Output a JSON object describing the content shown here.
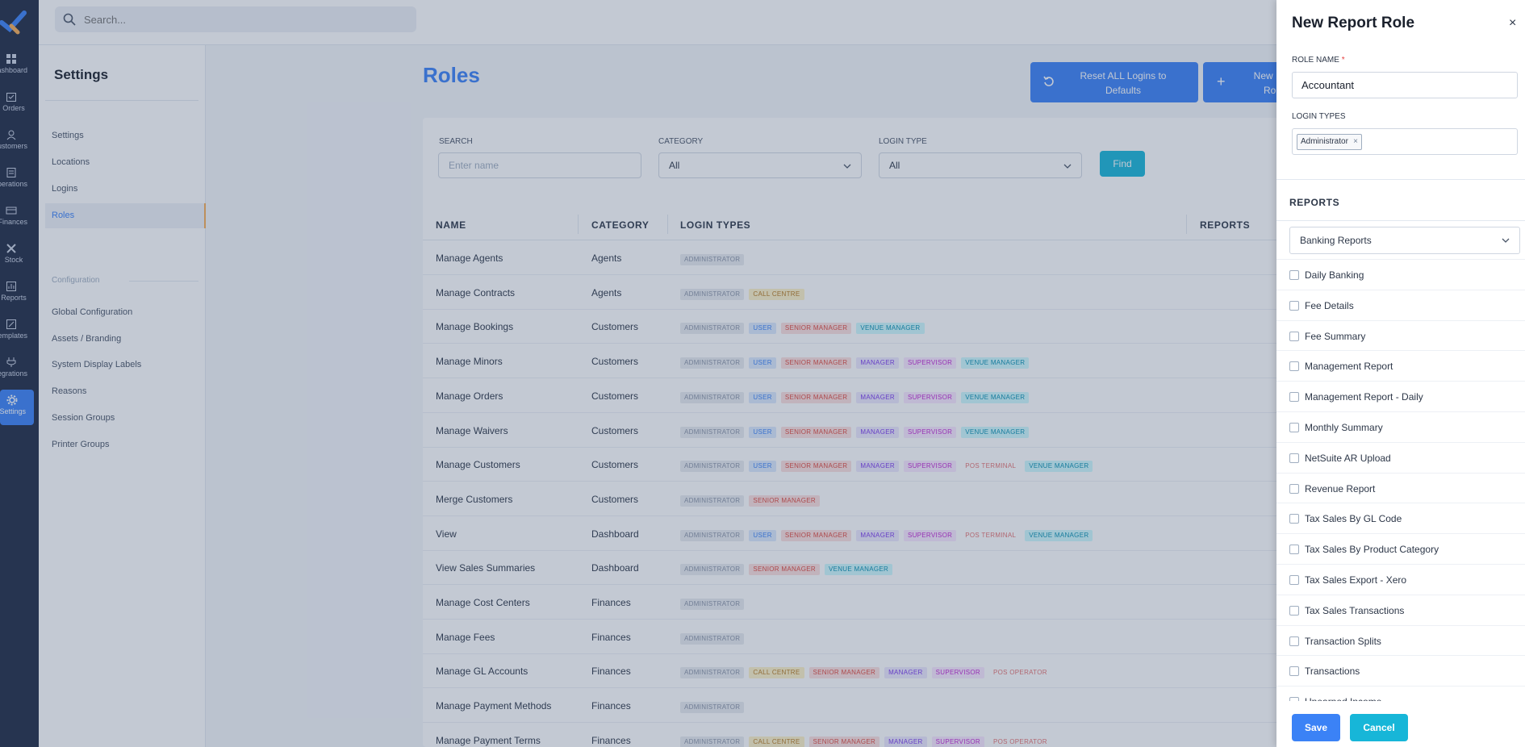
{
  "search": {
    "placeholder": "Search..."
  },
  "rail": {
    "items": [
      {
        "label": "Dashboard",
        "icon": "dashboard-icon"
      },
      {
        "label": "Orders",
        "icon": "orders-icon"
      },
      {
        "label": "Customers",
        "icon": "customers-icon"
      },
      {
        "label": "Operations",
        "icon": "operations-icon"
      },
      {
        "label": "Finances",
        "icon": "finances-icon"
      },
      {
        "label": "Stock",
        "icon": "stock-icon"
      },
      {
        "label": "Reports",
        "icon": "reports-icon"
      },
      {
        "label": "Templates",
        "icon": "templates-icon"
      },
      {
        "label": "Integrations",
        "icon": "integrations-icon"
      },
      {
        "label": "Settings",
        "icon": "gear-icon"
      }
    ]
  },
  "settings_nav": {
    "title": "Settings",
    "items": [
      "Settings",
      "Locations",
      "Logins",
      "Roles"
    ],
    "section": "Configuration",
    "config_items": [
      "Global Configuration",
      "Assets / Branding",
      "System Display Labels",
      "Reasons",
      "Session Groups",
      "Printer Groups"
    ]
  },
  "main": {
    "title": "Roles",
    "reset_button": "Reset ALL Logins to Defaults",
    "new_button": "New Re\nRol",
    "filters": {
      "search_label": "SEARCH",
      "search_placeholder": "Enter name",
      "category_label": "CATEGORY",
      "category_value": "All",
      "login_type_label": "LOGIN TYPE",
      "login_type_value": "All",
      "find": "Find"
    },
    "columns": [
      "NAME",
      "CATEGORY",
      "LOGIN TYPES",
      "REPORTS"
    ],
    "rows": [
      {
        "name": "Manage Agents",
        "category": "Agents",
        "tags": [
          "ADMINISTRATOR"
        ]
      },
      {
        "name": "Manage Contracts",
        "category": "Agents",
        "tags": [
          "ADMINISTRATOR",
          "CALL CENTRE"
        ]
      },
      {
        "name": "Manage Bookings",
        "category": "Customers",
        "tags": [
          "ADMINISTRATOR",
          "USER",
          "SENIOR MANAGER",
          "VENUE MANAGER"
        ]
      },
      {
        "name": "Manage Minors",
        "category": "Customers",
        "tags": [
          "ADMINISTRATOR",
          "USER",
          "SENIOR MANAGER",
          "MANAGER",
          "SUPERVISOR",
          "VENUE MANAGER"
        ]
      },
      {
        "name": "Manage Orders",
        "category": "Customers",
        "tags": [
          "ADMINISTRATOR",
          "USER",
          "SENIOR MANAGER",
          "MANAGER",
          "SUPERVISOR",
          "VENUE MANAGER"
        ]
      },
      {
        "name": "Manage Waivers",
        "category": "Customers",
        "tags": [
          "ADMINISTRATOR",
          "USER",
          "SENIOR MANAGER",
          "MANAGER",
          "SUPERVISOR",
          "VENUE MANAGER"
        ]
      },
      {
        "name": "Manage Customers",
        "category": "Customers",
        "tags": [
          "ADMINISTRATOR",
          "USER",
          "SENIOR MANAGER",
          "MANAGER",
          "SUPERVISOR",
          "POS TERMINAL",
          "VENUE MANAGER"
        ]
      },
      {
        "name": "Merge Customers",
        "category": "Customers",
        "tags": [
          "ADMINISTRATOR",
          "SENIOR MANAGER"
        ]
      },
      {
        "name": "View",
        "category": "Dashboard",
        "tags": [
          "ADMINISTRATOR",
          "USER",
          "SENIOR MANAGER",
          "MANAGER",
          "SUPERVISOR",
          "POS TERMINAL",
          "VENUE MANAGER"
        ]
      },
      {
        "name": "View Sales Summaries",
        "category": "Dashboard",
        "tags": [
          "ADMINISTRATOR",
          "SENIOR MANAGER",
          "VENUE MANAGER"
        ]
      },
      {
        "name": "Manage Cost Centers",
        "category": "Finances",
        "tags": [
          "ADMINISTRATOR"
        ]
      },
      {
        "name": "Manage Fees",
        "category": "Finances",
        "tags": [
          "ADMINISTRATOR"
        ]
      },
      {
        "name": "Manage GL Accounts",
        "category": "Finances",
        "tags": [
          "ADMINISTRATOR",
          "CALL CENTRE",
          "SENIOR MANAGER",
          "MANAGER",
          "SUPERVISOR",
          "POS OPERATOR"
        ]
      },
      {
        "name": "Manage Payment Methods",
        "category": "Finances",
        "tags": [
          "ADMINISTRATOR"
        ]
      },
      {
        "name": "Manage Payment Terms",
        "category": "Finances",
        "tags": [
          "ADMINISTRATOR",
          "CALL CENTRE",
          "SENIOR MANAGER",
          "MANAGER",
          "SUPERVISOR",
          "POS OPERATOR"
        ]
      }
    ]
  },
  "tag_colors": {
    "ADMINISTRATOR": {
      "fg": "#8a94a6",
      "bg": "#e8ebf0"
    },
    "USER": {
      "fg": "#3b82f6",
      "bg": "#dbeafe"
    },
    "SENIOR MANAGER": {
      "fg": "#e0483e",
      "bg": "#fde0de"
    },
    "MANAGER": {
      "fg": "#7c3aed",
      "bg": "#ede9fe"
    },
    "SUPERVISOR": {
      "fg": "#c026d3",
      "bg": "#fae8ff"
    },
    "VENUE MANAGER": {
      "fg": "#0891b2",
      "bg": "#cffafe"
    },
    "CALL CENTRE": {
      "fg": "#b7791f",
      "bg": "#fef3c7"
    },
    "POS TERMINAL": {
      "fg": "#e57373",
      "bg": "#ffffff"
    },
    "POS OPERATOR": {
      "fg": "#e57373",
      "bg": "#ffffff"
    }
  },
  "drawer": {
    "title": "New Report Role",
    "close": "×",
    "role_name_label": "ROLE NAME",
    "required_mark": "*",
    "role_name_value": "Accountant",
    "login_types_label": "LOGIN TYPES",
    "login_type_chip": "Administrator",
    "chip_remove": "×",
    "reports_label": "REPORTS",
    "report_group": "Banking Reports",
    "reports": [
      "Daily Banking",
      "Fee Details",
      "Fee Summary",
      "Management Report",
      "Management Report - Daily",
      "Monthly Summary",
      "NetSuite AR Upload",
      "Revenue Report",
      "Tax Sales By GL Code",
      "Tax Sales By Product Category",
      "Tax Sales Export - Xero",
      "Tax Sales Transactions",
      "Transaction Splits",
      "Transactions",
      "Unearned Income"
    ],
    "save": "Save",
    "cancel": "Cancel"
  }
}
